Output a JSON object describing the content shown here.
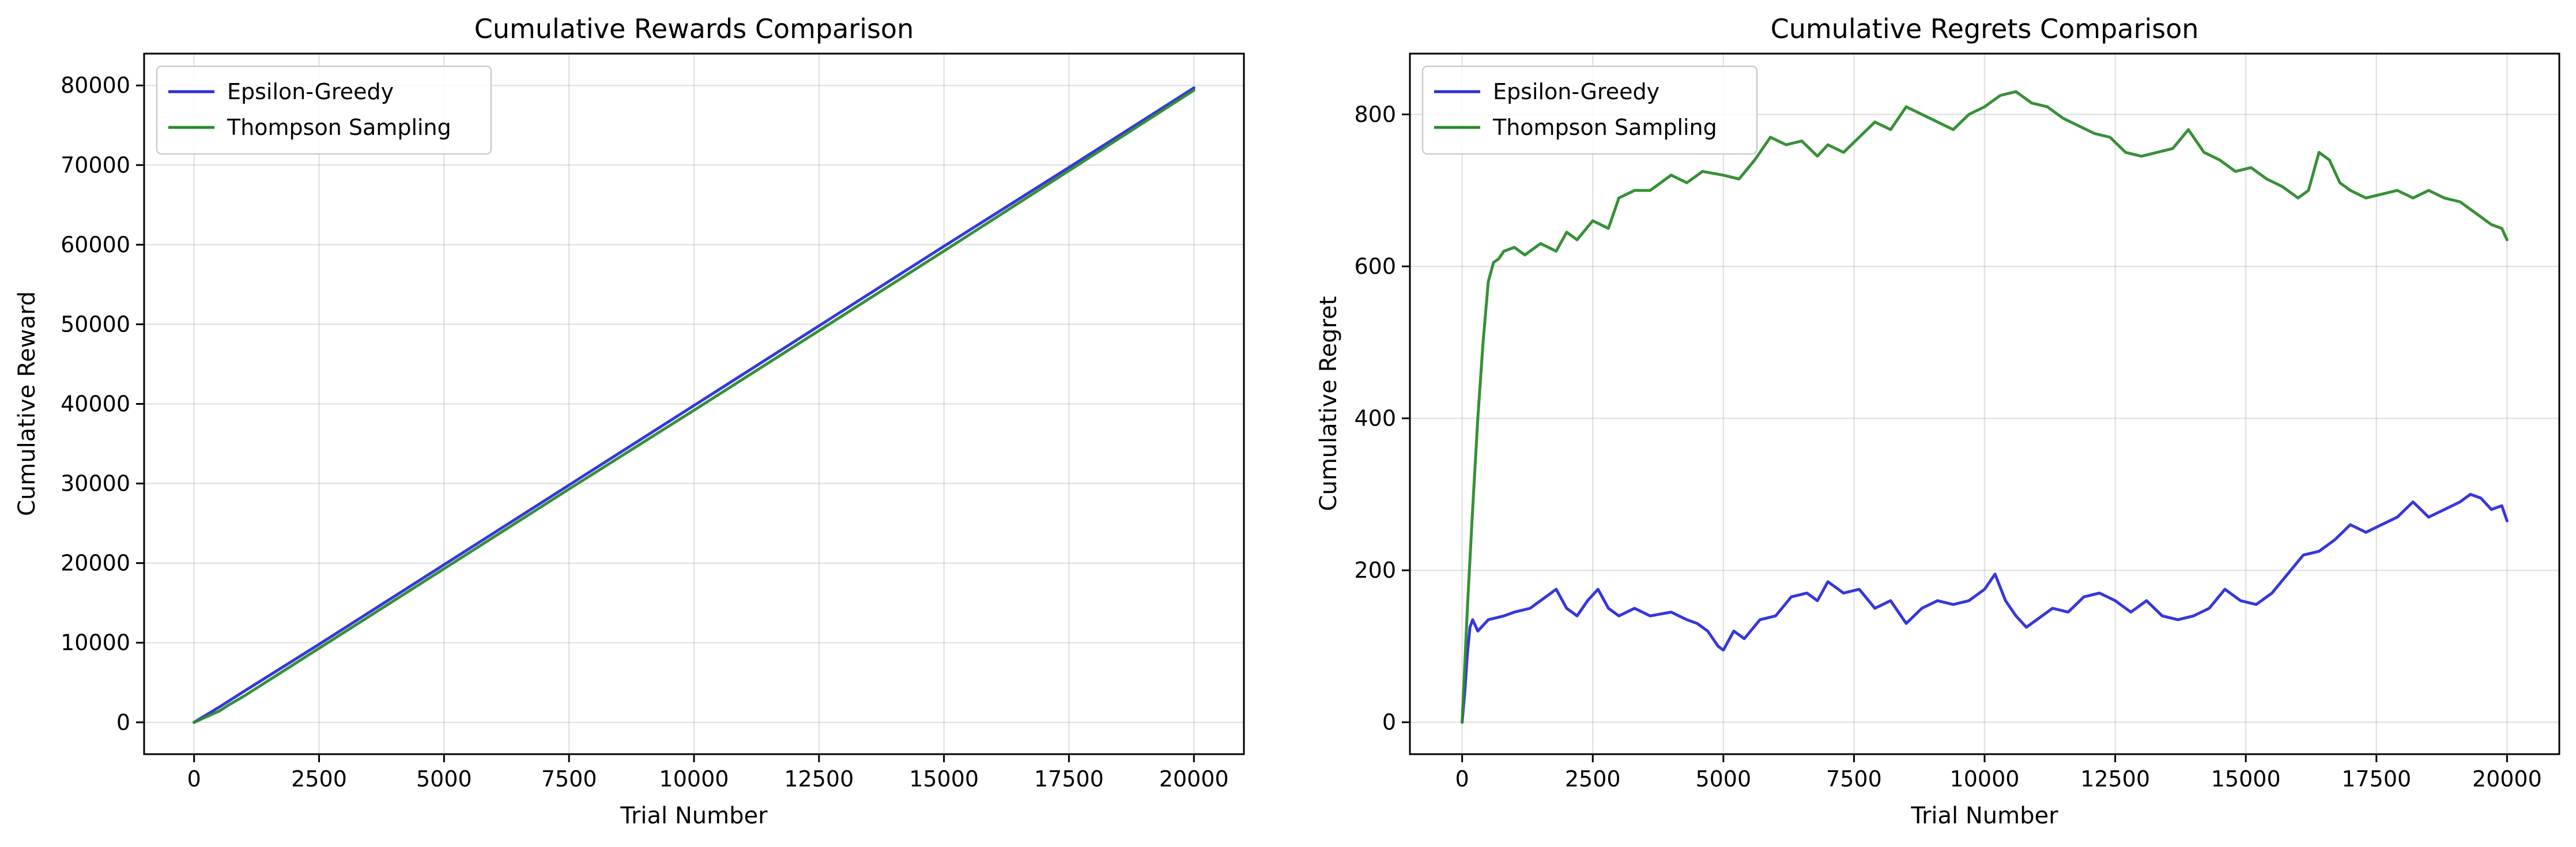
{
  "chart_data": [
    {
      "type": "line",
      "title": "Cumulative Rewards Comparison",
      "xlabel": "Trial Number",
      "ylabel": "Cumulative Reward",
      "xlim": [
        -1000,
        21000
      ],
      "ylim": [
        -4000,
        84000
      ],
      "xticks": [
        0,
        2500,
        5000,
        7500,
        10000,
        12500,
        15000,
        17500,
        20000
      ],
      "yticks": [
        0,
        10000,
        20000,
        30000,
        40000,
        50000,
        60000,
        70000,
        80000
      ],
      "grid": true,
      "legend": "top-left",
      "series": [
        {
          "name": "Epsilon-Greedy",
          "color": "#2b2bdb",
          "x": [
            0,
            500,
            1000,
            2500,
            5000,
            7500,
            10000,
            12500,
            15000,
            17500,
            20000
          ],
          "y": [
            0,
            1900,
            3900,
            9800,
            19800,
            29800,
            39800,
            49800,
            59800,
            69700,
            79700
          ]
        },
        {
          "name": "Thompson Sampling",
          "color": "#2b8a2b",
          "x": [
            0,
            500,
            700,
            1000,
            2500,
            5000,
            7500,
            10000,
            12500,
            15000,
            17500,
            20000
          ],
          "y": [
            0,
            1400,
            2200,
            3300,
            9300,
            19300,
            29300,
            39200,
            49200,
            59200,
            69300,
            79400
          ]
        }
      ]
    },
    {
      "type": "line",
      "title": "Cumulative Regrets Comparison",
      "xlabel": "Trial Number",
      "ylabel": "Cumulative Regret",
      "xlim": [
        -1000,
        21000
      ],
      "ylim": [
        -42,
        880
      ],
      "xticks": [
        0,
        2500,
        5000,
        7500,
        10000,
        12500,
        15000,
        17500,
        20000
      ],
      "yticks": [
        0,
        200,
        400,
        600,
        800
      ],
      "grid": true,
      "legend": "top-left",
      "series": [
        {
          "name": "Epsilon-Greedy",
          "color": "#2b2bdb",
          "x": [
            0,
            50,
            100,
            150,
            200,
            300,
            500,
            800,
            1000,
            1300,
            1500,
            1800,
            2000,
            2200,
            2400,
            2600,
            2800,
            3000,
            3300,
            3600,
            4000,
            4300,
            4500,
            4700,
            4900,
            5000,
            5200,
            5400,
            5700,
            6000,
            6300,
            6600,
            6800,
            7000,
            7300,
            7600,
            7900,
            8200,
            8500,
            8800,
            9100,
            9400,
            9700,
            10000,
            10200,
            10400,
            10600,
            10800,
            11000,
            11300,
            11600,
            11900,
            12200,
            12500,
            12800,
            13100,
            13400,
            13700,
            14000,
            14300,
            14600,
            14900,
            15200,
            15500,
            15800,
            16100,
            16400,
            16700,
            17000,
            17300,
            17600,
            17900,
            18200,
            18500,
            18800,
            19100,
            19300,
            19500,
            19700,
            19900,
            20000
          ],
          "y": [
            0,
            40,
            90,
            125,
            135,
            120,
            135,
            140,
            145,
            150,
            160,
            175,
            150,
            140,
            160,
            175,
            150,
            140,
            150,
            140,
            145,
            135,
            130,
            120,
            100,
            95,
            120,
            110,
            135,
            140,
            165,
            170,
            160,
            185,
            170,
            175,
            150,
            160,
            130,
            150,
            160,
            155,
            160,
            175,
            195,
            160,
            140,
            125,
            135,
            150,
            145,
            165,
            170,
            160,
            145,
            160,
            140,
            135,
            140,
            150,
            175,
            160,
            155,
            170,
            195,
            220,
            225,
            240,
            260,
            250,
            260,
            270,
            290,
            270,
            280,
            290,
            300,
            295,
            280,
            285,
            265
          ]
        },
        {
          "name": "Thompson Sampling",
          "color": "#2b8a2b",
          "x": [
            0,
            100,
            200,
            300,
            400,
            500,
            600,
            700,
            800,
            1000,
            1200,
            1500,
            1800,
            2000,
            2200,
            2500,
            2800,
            3000,
            3300,
            3600,
            4000,
            4300,
            4600,
            5000,
            5300,
            5600,
            5900,
            6200,
            6500,
            6800,
            7000,
            7300,
            7600,
            7900,
            8200,
            8500,
            8800,
            9100,
            9400,
            9700,
            10000,
            10300,
            10600,
            10900,
            11200,
            11500,
            11800,
            12100,
            12400,
            12700,
            13000,
            13300,
            13600,
            13900,
            14200,
            14500,
            14800,
            15100,
            15400,
            15700,
            16000,
            16200,
            16400,
            16600,
            16800,
            17000,
            17300,
            17600,
            17900,
            18200,
            18500,
            18800,
            19100,
            19400,
            19700,
            19900,
            20000
          ],
          "y": [
            0,
            150,
            280,
            400,
            500,
            580,
            605,
            610,
            620,
            625,
            615,
            630,
            620,
            645,
            635,
            660,
            650,
            690,
            700,
            700,
            720,
            710,
            725,
            720,
            715,
            740,
            770,
            760,
            765,
            745,
            760,
            750,
            770,
            790,
            780,
            810,
            800,
            790,
            780,
            800,
            810,
            825,
            830,
            815,
            810,
            795,
            785,
            775,
            770,
            750,
            745,
            750,
            755,
            780,
            750,
            740,
            725,
            730,
            715,
            705,
            690,
            700,
            750,
            740,
            710,
            700,
            690,
            695,
            700,
            690,
            700,
            690,
            685,
            670,
            655,
            650,
            635
          ]
        }
      ]
    }
  ]
}
